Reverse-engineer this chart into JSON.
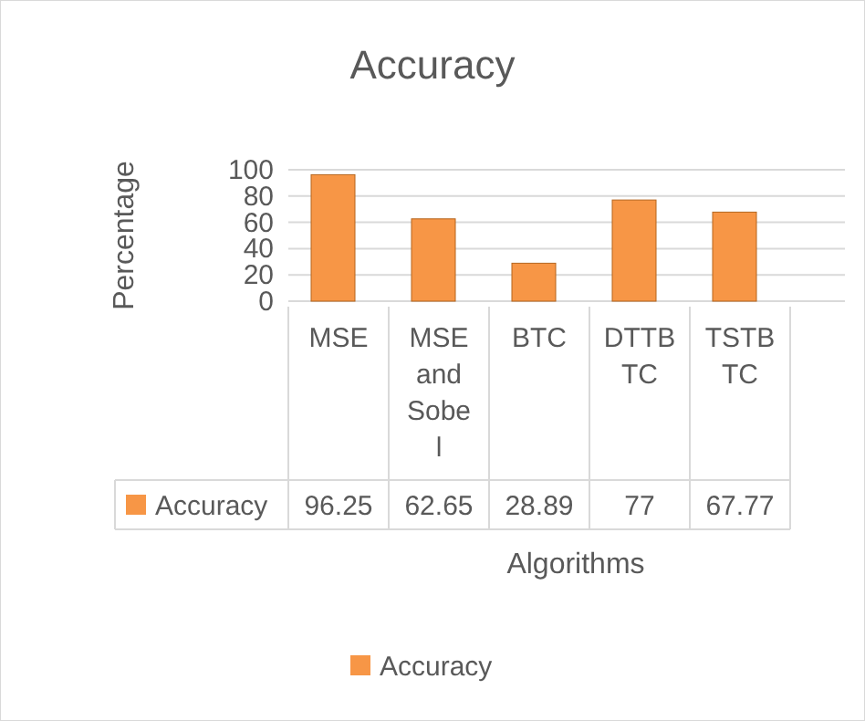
{
  "chart_data": {
    "type": "bar",
    "title": "Accuracy",
    "xlabel": "Algorithms",
    "ylabel": "Percentage",
    "categories": [
      "MSE",
      "MSE and Sobel",
      "BTC",
      "DTTBTC",
      "TSTBTC"
    ],
    "series": [
      {
        "name": "Accuracy",
        "color": "#f79646",
        "values": [
          96.25,
          62.65,
          28.89,
          77,
          67.77
        ]
      }
    ],
    "ylim": [
      0,
      100
    ],
    "yticks": [
      0,
      20,
      40,
      60,
      80,
      100
    ],
    "grid": "y",
    "legend": "bottom",
    "data_labels": true
  }
}
